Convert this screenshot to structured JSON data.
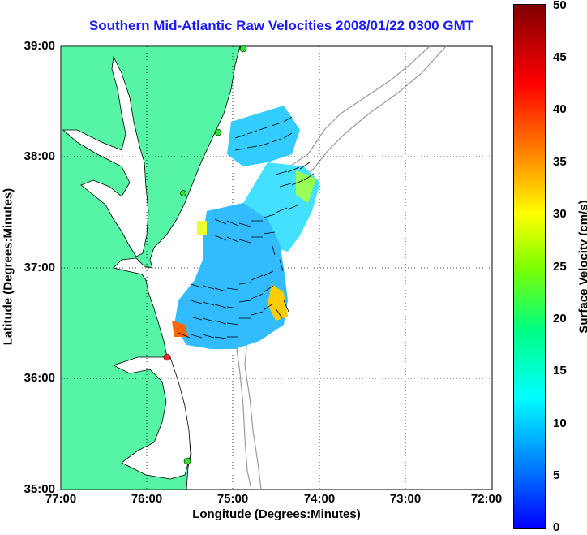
{
  "title": "Southern Mid-Atlantic Raw Velocities 2008/01/22 0300 GMT",
  "axes": {
    "xlabel": "Longitude (Degrees:Minutes)",
    "ylabel": "Latitude (Degrees:Minutes)",
    "x_ticks": [
      "77:00",
      "76:00",
      "75:00",
      "74:00",
      "73:00",
      "72:00"
    ],
    "y_ticks": [
      "39:00",
      "38:00",
      "37:00",
      "36:00",
      "35:00"
    ]
  },
  "colorbar": {
    "label": "Surface Velocity (cm/s)",
    "ticks": [
      "50",
      "45",
      "40",
      "35",
      "30",
      "25",
      "20",
      "15",
      "10",
      "5",
      "0"
    ]
  },
  "colors": {
    "land": "#55f5a5",
    "coast": "#000000",
    "bathymetry": "#999999",
    "title": "#1a1aff"
  }
}
